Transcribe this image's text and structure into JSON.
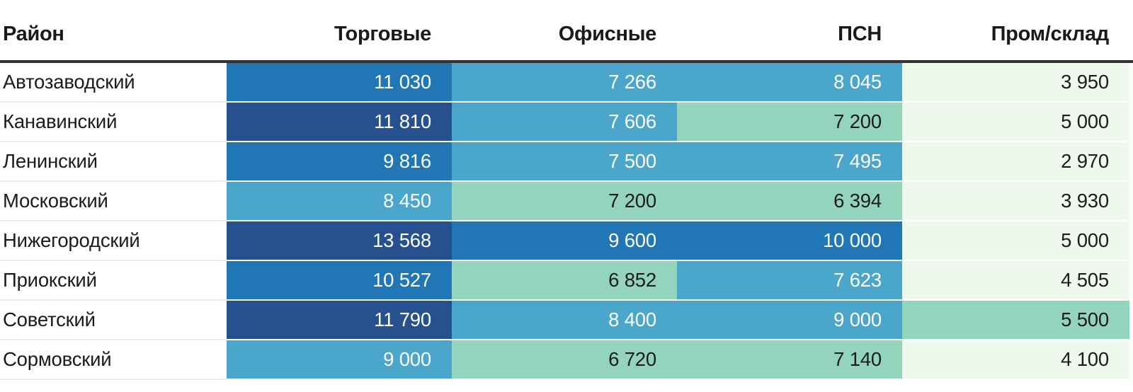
{
  "table": {
    "columns": [
      {
        "label": "Район",
        "align": "left"
      },
      {
        "label": "Торговые",
        "align": "right"
      },
      {
        "label": "Офисные",
        "align": "right"
      },
      {
        "label": "ПСН",
        "align": "right"
      },
      {
        "label": "Пром/склад",
        "align": "right"
      }
    ],
    "rows": [
      {
        "district": "Автозаводский",
        "cells": [
          {
            "value": "11 030",
            "bg": "#2176b5",
            "fg": "#ffffff"
          },
          {
            "value": "7 266",
            "bg": "#4aa6cb",
            "fg": "#ffffff"
          },
          {
            "value": "8 045",
            "bg": "#4aa6cb",
            "fg": "#ffffff"
          },
          {
            "value": "3 950",
            "bg": "#eff8ec",
            "fg": "#1c1c1c"
          }
        ]
      },
      {
        "district": "Канавинский",
        "cells": [
          {
            "value": "11 810",
            "bg": "#27508e",
            "fg": "#ffffff"
          },
          {
            "value": "7 606",
            "bg": "#4aa6cb",
            "fg": "#ffffff"
          },
          {
            "value": "7 200",
            "bg": "#93d4bc",
            "fg": "#1c1c1c"
          },
          {
            "value": "5 000",
            "bg": "#eff8ec",
            "fg": "#1c1c1c"
          }
        ]
      },
      {
        "district": "Ленинский",
        "cells": [
          {
            "value": "9 816",
            "bg": "#2176b5",
            "fg": "#ffffff"
          },
          {
            "value": "7 500",
            "bg": "#4aa6cb",
            "fg": "#ffffff"
          },
          {
            "value": "7 495",
            "bg": "#4aa6cb",
            "fg": "#ffffff"
          },
          {
            "value": "2 970",
            "bg": "#eff8ec",
            "fg": "#1c1c1c"
          }
        ]
      },
      {
        "district": "Московский",
        "cells": [
          {
            "value": "8 450",
            "bg": "#4aa6cb",
            "fg": "#ffffff"
          },
          {
            "value": "7 200",
            "bg": "#93d4bc",
            "fg": "#1c1c1c"
          },
          {
            "value": "6 394",
            "bg": "#93d4bc",
            "fg": "#1c1c1c"
          },
          {
            "value": "3 930",
            "bg": "#eff8ec",
            "fg": "#1c1c1c"
          }
        ]
      },
      {
        "district": "Нижегородский",
        "cells": [
          {
            "value": "13 568",
            "bg": "#27508e",
            "fg": "#ffffff"
          },
          {
            "value": "9 600",
            "bg": "#2176b5",
            "fg": "#ffffff"
          },
          {
            "value": "10 000",
            "bg": "#2176b5",
            "fg": "#ffffff"
          },
          {
            "value": "5 000",
            "bg": "#eff8ec",
            "fg": "#1c1c1c"
          }
        ]
      },
      {
        "district": "Приокский",
        "cells": [
          {
            "value": "10 527",
            "bg": "#2176b5",
            "fg": "#ffffff"
          },
          {
            "value": "6 852",
            "bg": "#93d4bc",
            "fg": "#1c1c1c"
          },
          {
            "value": "7 623",
            "bg": "#4aa6cb",
            "fg": "#ffffff"
          },
          {
            "value": "4 505",
            "bg": "#eff8ec",
            "fg": "#1c1c1c"
          }
        ]
      },
      {
        "district": "Советский",
        "cells": [
          {
            "value": "11 790",
            "bg": "#27508e",
            "fg": "#ffffff"
          },
          {
            "value": "8 400",
            "bg": "#4aa6cb",
            "fg": "#ffffff"
          },
          {
            "value": "9 000",
            "bg": "#4aa6cb",
            "fg": "#ffffff"
          },
          {
            "value": "5 500",
            "bg": "#93d4bc",
            "fg": "#1c1c1c"
          }
        ]
      },
      {
        "district": "Сормовский",
        "cells": [
          {
            "value": "9 000",
            "bg": "#4aa6cb",
            "fg": "#ffffff"
          },
          {
            "value": "6 720",
            "bg": "#93d4bc",
            "fg": "#1c1c1c"
          },
          {
            "value": "7 140",
            "bg": "#93d4bc",
            "fg": "#1c1c1c"
          },
          {
            "value": "4 100",
            "bg": "#eff8ec",
            "fg": "#1c1c1c"
          }
        ]
      }
    ]
  },
  "chart_data": {
    "type": "heatmap",
    "title": "",
    "row_axis_label": "Район",
    "columns": [
      "Торговые",
      "Офисные",
      "ПСН",
      "Пром/склад"
    ],
    "rows": [
      "Автозаводский",
      "Канавинский",
      "Ленинский",
      "Московский",
      "Нижегородский",
      "Приокский",
      "Советский",
      "Сормовский"
    ],
    "values": [
      [
        11030,
        7266,
        8045,
        3950
      ],
      [
        11810,
        7606,
        7200,
        5000
      ],
      [
        9816,
        7500,
        7495,
        2970
      ],
      [
        8450,
        7200,
        6394,
        3930
      ],
      [
        13568,
        9600,
        10000,
        5000
      ],
      [
        10527,
        6852,
        7623,
        4505
      ],
      [
        11790,
        8400,
        9000,
        5500
      ],
      [
        9000,
        6720,
        7140,
        4100
      ]
    ],
    "value_range": [
      2970,
      13568
    ],
    "legend": "none",
    "grid": "off",
    "color_bins": [
      {
        "max": 5000,
        "color": "#eff8ec"
      },
      {
        "max": 7200,
        "color": "#93d4bc"
      },
      {
        "max": 9000,
        "color": "#4aa6cb"
      },
      {
        "max": 11030,
        "color": "#2176b5"
      },
      {
        "max": 13568,
        "color": "#27508e"
      }
    ]
  },
  "colors": {
    "header_text": "#1a1a1a",
    "header_rule": "#323232",
    "row_separator_name_col": "#ebebeb",
    "row_separator_heat_cols": "#ffffff",
    "text_on_dark": "#ffffff",
    "text_on_light": "#1c1c1c",
    "background": "#ffffff"
  }
}
